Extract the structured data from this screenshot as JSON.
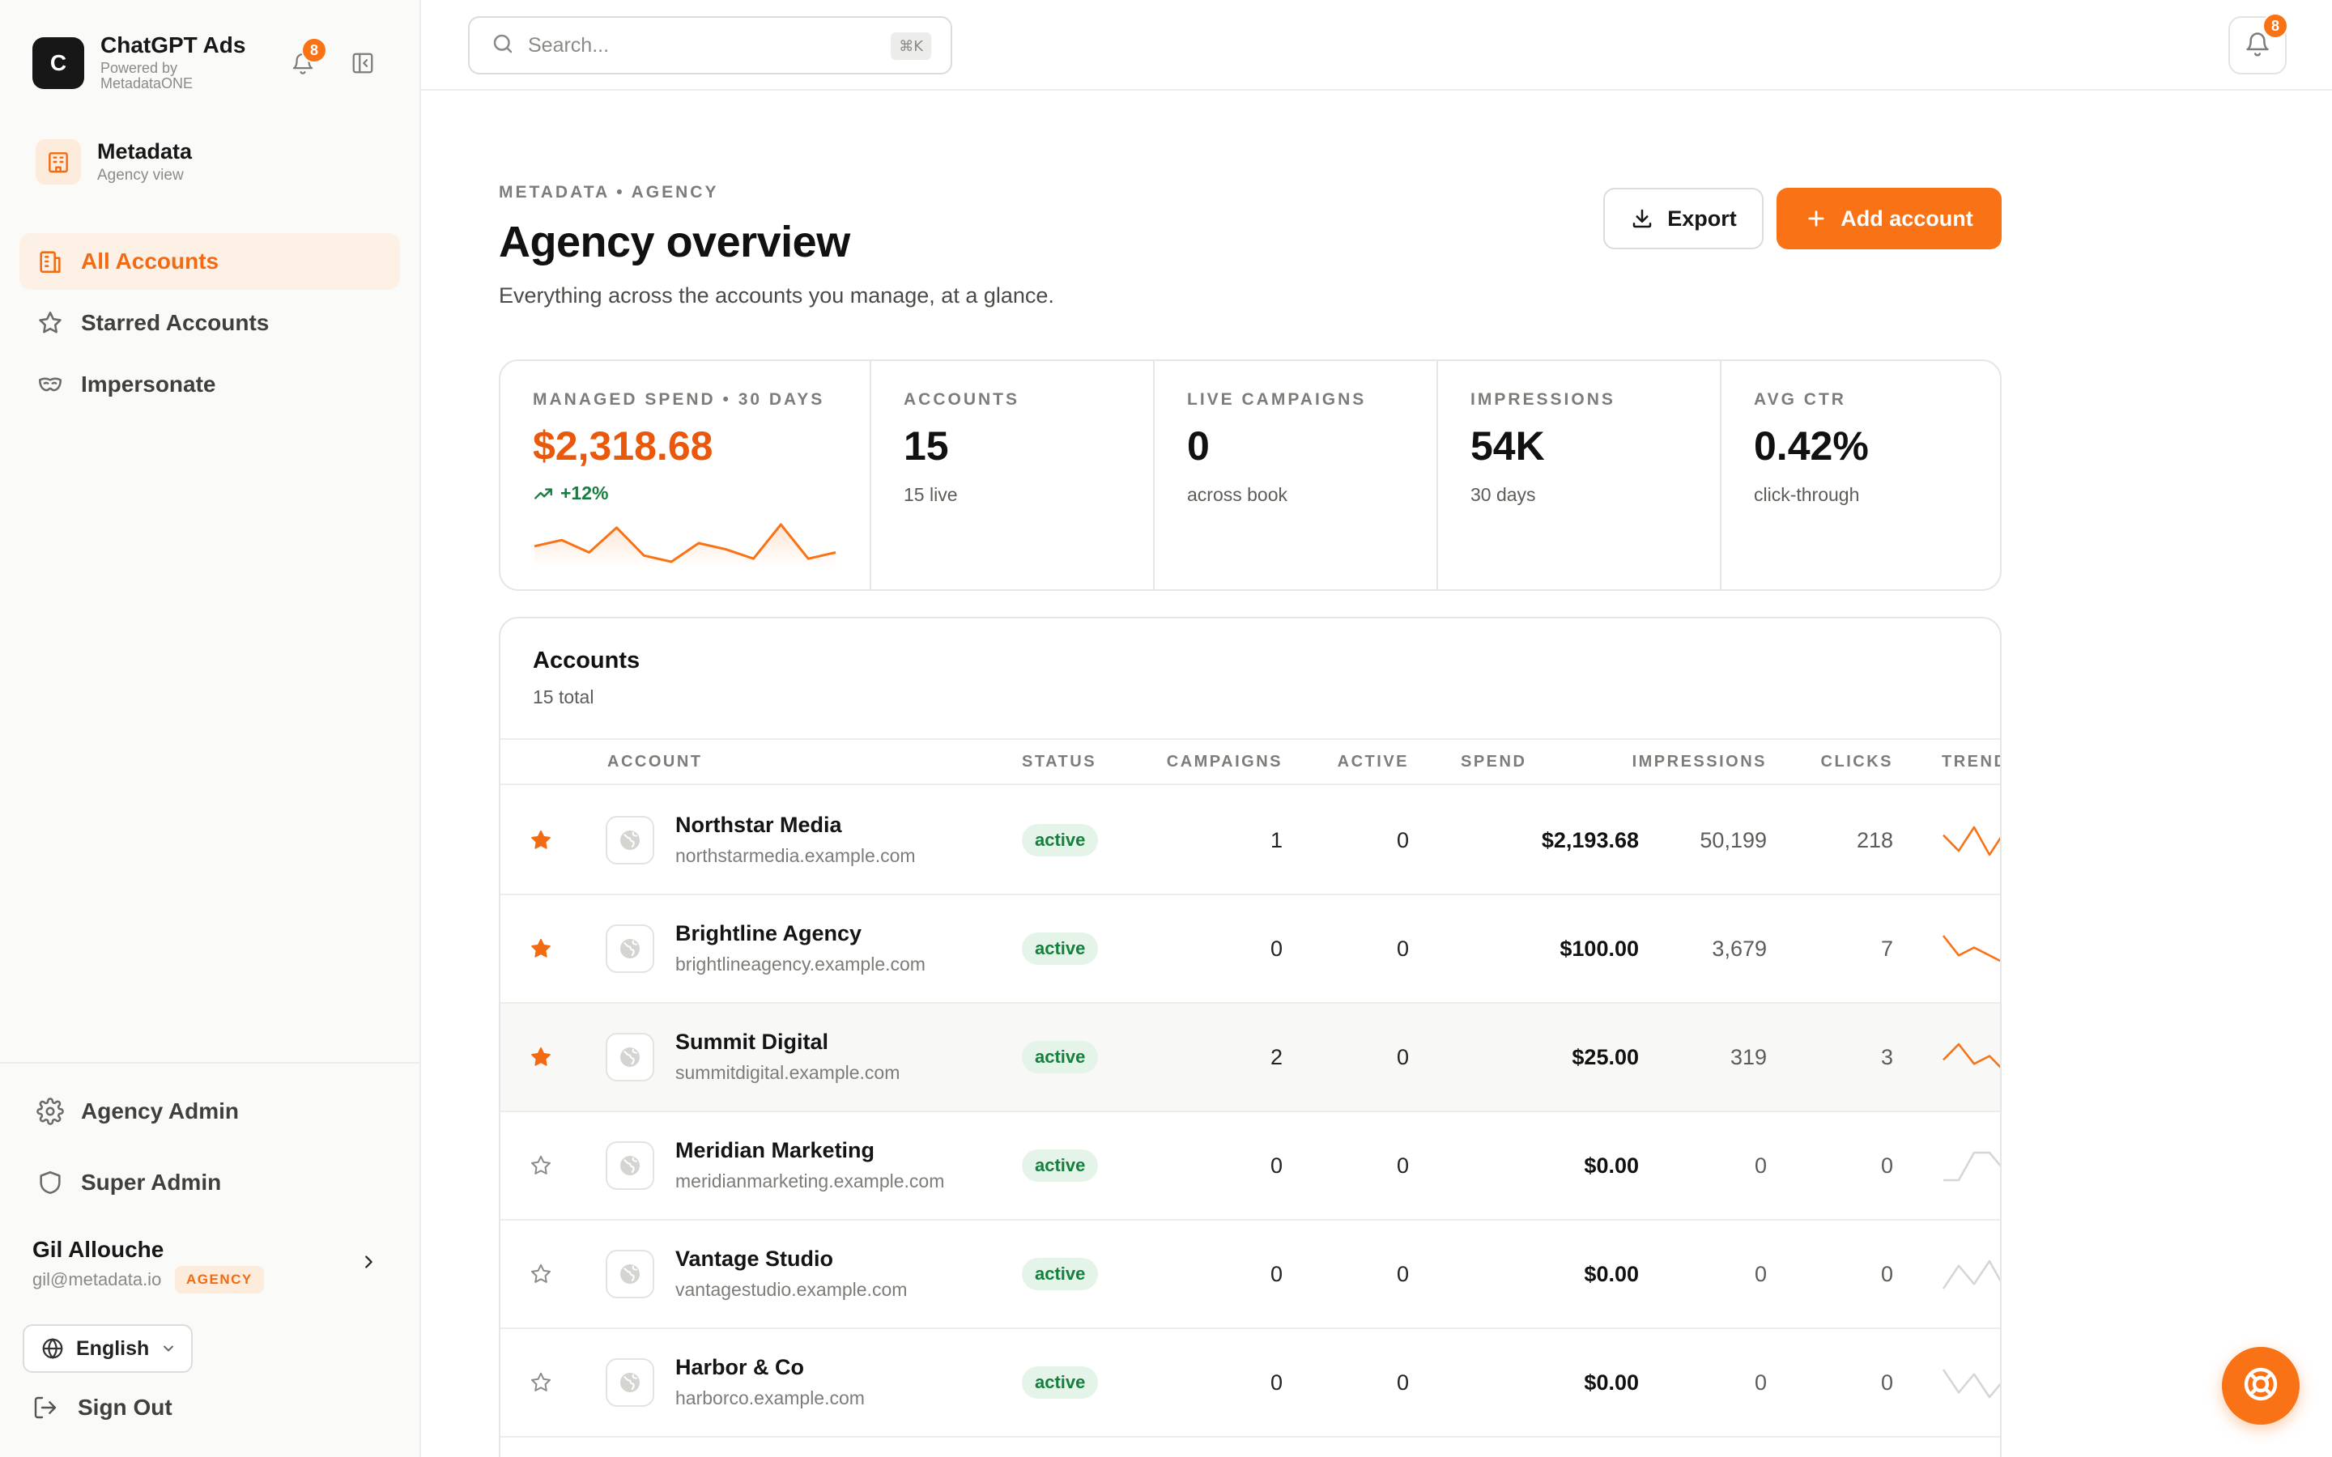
{
  "app": {
    "logo_letter": "C",
    "title": "ChatGPT Ads",
    "subtitle": "Powered by MetadataONE",
    "notification_count": "8"
  },
  "org": {
    "name": "Metadata",
    "view": "Agency view"
  },
  "nav": {
    "items": [
      {
        "label": "All Accounts",
        "icon": "building-icon",
        "active": true
      },
      {
        "label": "Starred Accounts",
        "icon": "star-icon",
        "active": false
      },
      {
        "label": "Impersonate",
        "icon": "mask-icon",
        "active": false
      }
    ],
    "bottom_items": [
      {
        "label": "Agency Admin",
        "icon": "gear-icon"
      },
      {
        "label": "Super Admin",
        "icon": "shield-icon"
      }
    ]
  },
  "user": {
    "name": "Gil Allouche",
    "email": "gil@metadata.io",
    "role": "AGENCY"
  },
  "language": {
    "selected": "English"
  },
  "signout_label": "Sign Out",
  "search": {
    "placeholder": "Search...",
    "shortcut": "⌘K"
  },
  "topbar": {
    "notification_count": "8"
  },
  "header": {
    "breadcrumb": "METADATA • AGENCY",
    "title": "Agency overview",
    "subtitle": "Everything across the accounts you manage, at a glance.",
    "export_label": "Export",
    "add_label": "Add account"
  },
  "stats": [
    {
      "label": "MANAGED SPEND • 30 DAYS",
      "value": "$2,318.68",
      "delta": "+12%",
      "spark": [
        8,
        6,
        10,
        2,
        11,
        13,
        7,
        9,
        12,
        1,
        12,
        10
      ]
    },
    {
      "label": "ACCOUNTS",
      "value": "15",
      "note": "15 live"
    },
    {
      "label": "LIVE CAMPAIGNS",
      "value": "0",
      "note": "across book"
    },
    {
      "label": "IMPRESSIONS",
      "value": "54K",
      "note": "30 days"
    },
    {
      "label": "AVG CTR",
      "value": "0.42%",
      "note": "click-through"
    }
  ],
  "accounts": {
    "title": "Accounts",
    "subtitle": "15 total",
    "columns": [
      "ACCOUNT",
      "STATUS",
      "CAMPAIGNS",
      "ACTIVE",
      "SPEND",
      "IMPRESSIONS",
      "CLICKS",
      "TREND"
    ],
    "rows": [
      {
        "starred": true,
        "name": "Northstar Media",
        "domain": "northstarmedia.example.com",
        "status": "active",
        "campaigns": "1",
        "active": "0",
        "spend": "$2,193.68",
        "impressions": "50,199",
        "clicks": "218",
        "trend": [
          7,
          3,
          9,
          2,
          8
        ],
        "trend_color": "#f97316"
      },
      {
        "starred": true,
        "name": "Brightline Agency",
        "domain": "brightlineagency.example.com",
        "status": "active",
        "campaigns": "0",
        "active": "0",
        "spend": "$100.00",
        "impressions": "3,679",
        "clicks": "7",
        "trend": [
          9,
          4,
          6,
          4,
          2
        ],
        "trend_color": "#f97316"
      },
      {
        "starred": true,
        "name": "Summit Digital",
        "domain": "summitdigital.example.com",
        "status": "active",
        "campaigns": "2",
        "active": "0",
        "spend": "$25.00",
        "impressions": "319",
        "clicks": "3",
        "trend": [
          5,
          9,
          4,
          6,
          2
        ],
        "trend_color": "#f97316"
      },
      {
        "starred": false,
        "name": "Meridian Marketing",
        "domain": "meridianmarketing.example.com",
        "status": "active",
        "campaigns": "0",
        "active": "0",
        "spend": "$0.00",
        "impressions": "0",
        "clicks": "0",
        "trend": [
          2,
          2,
          8,
          8,
          4
        ],
        "trend_color": "#d6d6d3"
      },
      {
        "starred": false,
        "name": "Vantage Studio",
        "domain": "vantagestudio.example.com",
        "status": "active",
        "campaigns": "0",
        "active": "0",
        "spend": "$0.00",
        "impressions": "0",
        "clicks": "0",
        "trend": [
          3,
          8,
          4,
          9,
          3
        ],
        "trend_color": "#d6d6d3"
      },
      {
        "starred": false,
        "name": "Harbor & Co",
        "domain": "harborco.example.com",
        "status": "active",
        "campaigns": "0",
        "active": "0",
        "spend": "$0.00",
        "impressions": "0",
        "clicks": "0",
        "trend": [
          9,
          4,
          8,
          3,
          7
        ],
        "trend_color": "#d6d6d3"
      }
    ]
  },
  "colors": {
    "accent": "#f97316",
    "success": "#15803d"
  }
}
